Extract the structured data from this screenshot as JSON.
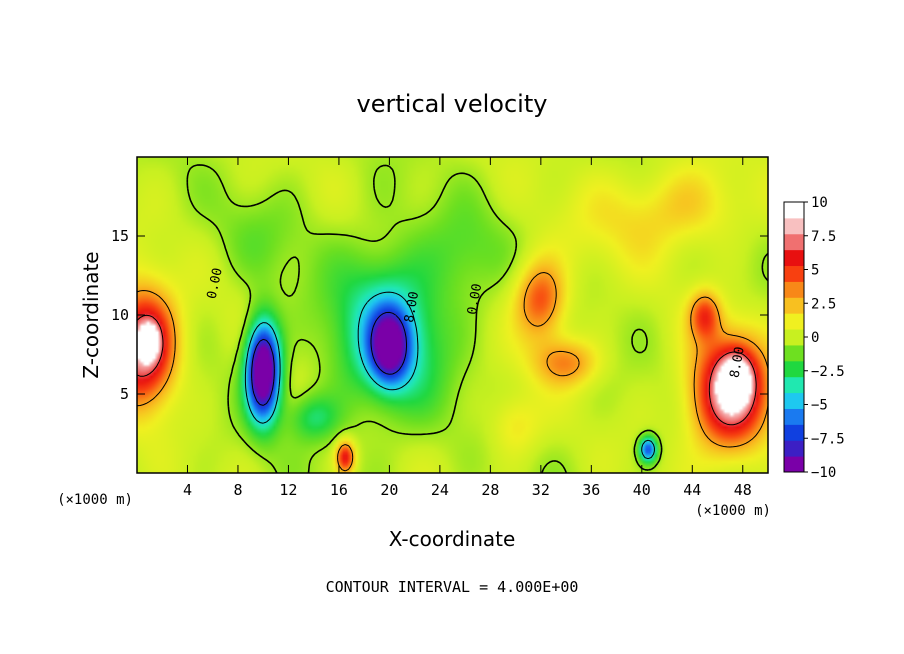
{
  "chart_data": {
    "type": "heatmap",
    "title": "vertical velocity",
    "xlabel": "X-coordinate",
    "ylabel": "Z-coordinate",
    "x_unit_left": "(×1000 m)",
    "x_unit_right": "(×1000 m)",
    "xlim": [
      0,
      50
    ],
    "ylim": [
      0,
      20
    ],
    "xticks": [
      4,
      8,
      12,
      16,
      20,
      24,
      28,
      32,
      36,
      40,
      44,
      48
    ],
    "xtick_labels": [
      "4",
      "8",
      "12",
      "16",
      "20",
      "24",
      "28",
      "32",
      "36",
      "40",
      "44",
      "48"
    ],
    "yticks": [
      5,
      10,
      15
    ],
    "ytick_labels": [
      "5",
      "10",
      "15"
    ],
    "colorbar": {
      "range": [
        -10,
        10
      ],
      "ticks": [
        10,
        7.5,
        5,
        2.5,
        0,
        -2.5,
        -5,
        -7.5,
        -10
      ],
      "tick_labels": [
        "10",
        "7.5",
        "5",
        "2.5",
        "0",
        "−2.5",
        "−5",
        "−7.5",
        "−10"
      ],
      "colors": [
        "#7a00a8",
        "#3c1fc4",
        "#1040e0",
        "#1a7af0",
        "#1ec8f0",
        "#20e8b0",
        "#20d840",
        "#6ee020",
        "#c8f020",
        "#f0f020",
        "#f8c020",
        "#f88818",
        "#f84010",
        "#e81010",
        "#f07070",
        "#f8c0c0",
        "#ffffff"
      ]
    },
    "features": [
      {
        "x": 0.5,
        "z": 8.0,
        "sx": 2.5,
        "sz": 3.5,
        "value": 10.0
      },
      {
        "x": 1.0,
        "z": 8.3,
        "sx": 0.7,
        "sz": 1.0,
        "value": 6.0
      },
      {
        "x": 47.0,
        "z": 5.0,
        "sx": 3.0,
        "sz": 3.5,
        "value": 10.0
      },
      {
        "x": 47.5,
        "z": 6.0,
        "sx": 1.2,
        "sz": 1.5,
        "value": 6.0
      },
      {
        "x": 45.0,
        "z": 10.0,
        "sx": 1.2,
        "sz": 1.5,
        "value": 5.0
      },
      {
        "x": 10.0,
        "z": 6.5,
        "sx": 1.3,
        "sz": 3.0,
        "value": -14.0
      },
      {
        "x": 20.0,
        "z": 9.0,
        "sx": 4.5,
        "sz": 5.0,
        "value": -5.0
      },
      {
        "x": 20.0,
        "z": 8.0,
        "sx": 1.5,
        "sz": 2.2,
        "value": -9.0
      },
      {
        "x": 32.0,
        "z": 11.0,
        "sx": 2.0,
        "sz": 2.5,
        "value": 5.5
      },
      {
        "x": 34.0,
        "z": 7.0,
        "sx": 2.5,
        "sz": 1.5,
        "value": 4.0
      },
      {
        "x": 16.5,
        "z": 1.0,
        "sx": 0.7,
        "sz": 1.0,
        "value": 7.0
      },
      {
        "x": 40.5,
        "z": 1.5,
        "sx": 0.7,
        "sz": 0.8,
        "value": -8.0
      },
      {
        "x": 14.0,
        "z": 3.5,
        "sx": 2.0,
        "sz": 1.5,
        "value": -3.0
      },
      {
        "x": 30.0,
        "z": 3.0,
        "sx": 2.0,
        "sz": 2.0,
        "value": 2.0
      },
      {
        "x": 26.0,
        "z": 14.0,
        "sx": 3.0,
        "sz": 3.0,
        "value": -1.5
      },
      {
        "x": 10.0,
        "z": 15.0,
        "sx": 4.0,
        "sz": 3.0,
        "value": -1.0
      },
      {
        "x": 39.0,
        "z": 16.0,
        "sx": 5.0,
        "sz": 3.0,
        "value": 1.5
      },
      {
        "x": 44.0,
        "z": 17.0,
        "sx": 4.0,
        "sz": 2.5,
        "value": 2.0
      }
    ],
    "contour_labels": [
      {
        "text": "0.00",
        "x": 6.2,
        "z": 12.0,
        "angle": -78
      },
      {
        "text": "8.00",
        "x": 21.8,
        "z": 10.5,
        "angle": -80
      },
      {
        "text": "0.00",
        "x": 26.8,
        "z": 11.0,
        "angle": -80
      },
      {
        "text": "8.00",
        "x": 47.6,
        "z": 7.0,
        "angle": -80
      }
    ],
    "footer": "CONTOUR INTERVAL = 4.000E+00"
  }
}
